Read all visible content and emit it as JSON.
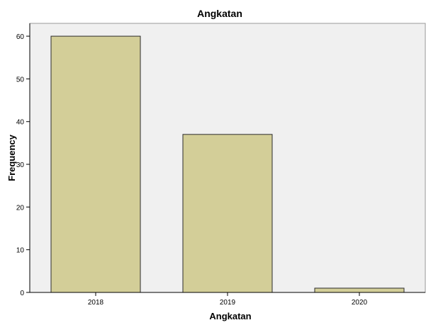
{
  "chart_data": {
    "type": "bar",
    "title": "Angkatan",
    "xlabel": "Angkatan",
    "ylabel": "Frequency",
    "categories": [
      "2018",
      "2019",
      "2020"
    ],
    "values": [
      60,
      37,
      1
    ],
    "ylim": [
      0,
      63
    ],
    "yticks": [
      0,
      10,
      20,
      30,
      40,
      50,
      60
    ],
    "grid": false,
    "colors": {
      "bar_fill": "#d3ce98",
      "bar_stroke": "#2b2b2b",
      "plot_background": "#f0f0f0",
      "axis": "#000000"
    }
  }
}
